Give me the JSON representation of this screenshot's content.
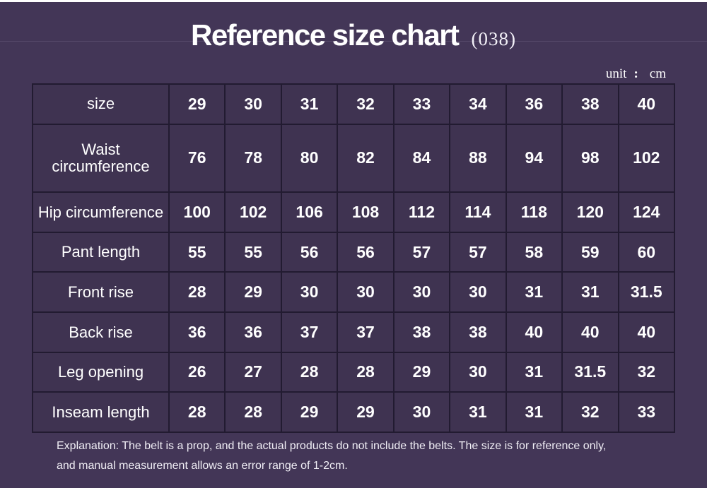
{
  "page": {
    "title": "Reference size chart",
    "title_suffix": "(038)",
    "unit": {
      "label": "unit",
      "separator": ":",
      "value": "cm"
    },
    "footer_lines": [
      "Explanation: The belt is a prop, and the actual products do not include the belts. The size is for reference only,",
      "and manual measurement allows an error range of 1-2cm."
    ],
    "colors": {
      "background": "#433657",
      "cell_background": "#3f3351",
      "table_border": "#221b31",
      "text": "#ffffff"
    }
  },
  "chart_data": {
    "type": "table",
    "title": "Reference size chart (038)",
    "unit": "cm",
    "rows": [
      {
        "label": "size",
        "values": [
          "29",
          "30",
          "31",
          "32",
          "33",
          "34",
          "36",
          "38",
          "40"
        ]
      },
      {
        "label": "Waist circumference",
        "values": [
          "76",
          "78",
          "80",
          "82",
          "84",
          "88",
          "94",
          "98",
          "102"
        ]
      },
      {
        "label": "Hip circumference",
        "values": [
          "100",
          "102",
          "106",
          "108",
          "112",
          "114",
          "118",
          "120",
          "124"
        ]
      },
      {
        "label": "Pant length",
        "values": [
          "55",
          "55",
          "56",
          "56",
          "57",
          "57",
          "58",
          "59",
          "60"
        ]
      },
      {
        "label": "Front rise",
        "values": [
          "28",
          "29",
          "30",
          "30",
          "30",
          "30",
          "31",
          "31",
          "31.5"
        ]
      },
      {
        "label": "Back rise",
        "values": [
          "36",
          "36",
          "37",
          "37",
          "38",
          "38",
          "40",
          "40",
          "40"
        ]
      },
      {
        "label": "Leg opening",
        "values": [
          "26",
          "27",
          "28",
          "28",
          "29",
          "30",
          "31",
          "31.5",
          "32"
        ]
      },
      {
        "label": "Inseam length",
        "values": [
          "28",
          "28",
          "29",
          "29",
          "30",
          "31",
          "31",
          "32",
          "33"
        ]
      }
    ],
    "note": "Explanation: The belt is a prop, and the actual products do not include the belts. The size is for reference only, and manual measurement allows an error range of 1-2cm."
  }
}
